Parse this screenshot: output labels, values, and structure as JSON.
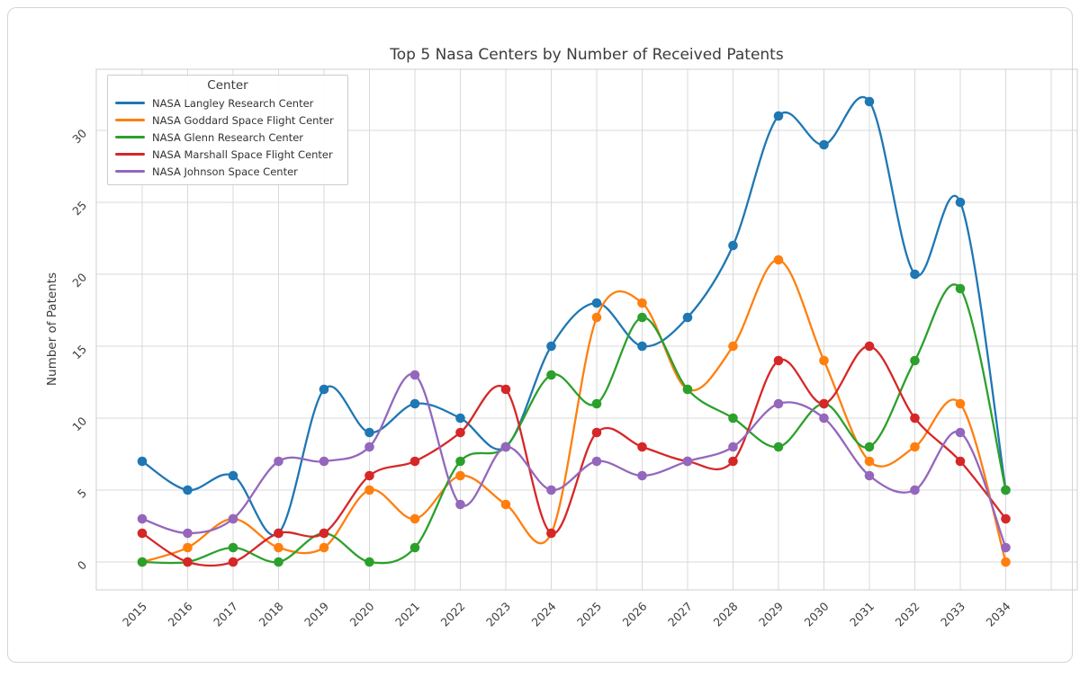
{
  "chart_data": {
    "type": "line",
    "title": "Top 5 Nasa Centers by Number of Received Patents",
    "xlabel": "",
    "ylabel": "Number of Patents",
    "x": [
      2015,
      2016,
      2017,
      2018,
      2019,
      2020,
      2021,
      2022,
      2023,
      2024,
      2025,
      2026,
      2027,
      2028,
      2029,
      2030,
      2031,
      2032,
      2033,
      2034
    ],
    "series": [
      {
        "name": "NASA Langley Research Center",
        "color": "#1f77b4",
        "values": [
          7,
          5,
          6,
          2,
          12,
          9,
          11,
          10,
          8,
          15,
          18,
          15,
          17,
          22,
          31,
          29,
          32,
          20,
          25,
          5
        ]
      },
      {
        "name": "NASA Goddard Space Flight Center",
        "color": "#ff7f0e",
        "values": [
          0,
          1,
          3,
          1,
          1,
          5,
          3,
          6,
          4,
          2,
          17,
          18,
          12,
          15,
          21,
          14,
          7,
          8,
          11,
          0
        ]
      },
      {
        "name": "NASA Glenn Research Center",
        "color": "#2ca02c",
        "values": [
          0,
          0,
          1,
          0,
          2,
          0,
          1,
          7,
          8,
          13,
          11,
          17,
          12,
          10,
          8,
          11,
          8,
          14,
          19,
          5
        ]
      },
      {
        "name": "NASA Marshall Space Flight Center",
        "color": "#d62728",
        "values": [
          2,
          0,
          0,
          2,
          2,
          6,
          7,
          9,
          12,
          2,
          9,
          8,
          7,
          7,
          14,
          11,
          15,
          10,
          7,
          3
        ]
      },
      {
        "name": "NASA Johnson Space Center",
        "color": "#9467bd",
        "values": [
          3,
          2,
          3,
          7,
          7,
          8,
          13,
          4,
          8,
          5,
          7,
          6,
          7,
          8,
          11,
          10,
          6,
          5,
          9,
          1
        ]
      }
    ],
    "yticks": [
      0,
      5,
      10,
      15,
      20,
      25,
      30
    ],
    "xtick_labels": [
      "2015",
      "2016",
      "2017",
      "2018",
      "2019",
      "2020",
      "2021",
      "2022",
      "2023",
      "2024",
      "2025",
      "2026",
      "2027",
      "2028",
      "2029",
      "2030",
      "2031",
      "2032",
      "2033",
      "2034"
    ],
    "ylim": [
      -2,
      34
    ],
    "grid": true,
    "tick_rotation_deg": 45,
    "legend": {
      "title": "Center",
      "position": "upper left",
      "entries": [
        "NASA Langley Research Center",
        "NASA Goddard Space Flight Center",
        "NASA Glenn Research Center",
        "NASA Marshall Space Flight Center",
        "NASA Johnson Space Center"
      ]
    },
    "colors": {
      "grid": "#d9d9d9",
      "spine": "#cfcfcf",
      "tick_text": "#3d3d3d",
      "title_text": "#3c3c3c"
    }
  }
}
